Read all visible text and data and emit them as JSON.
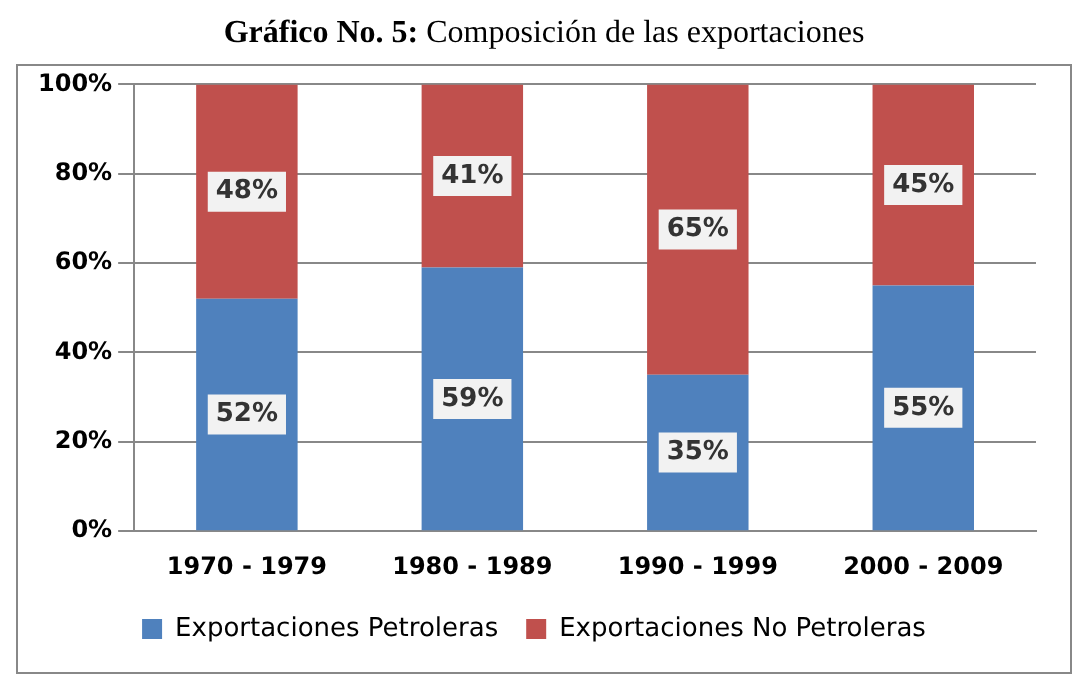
{
  "chart_data": {
    "type": "bar",
    "title": "Gráfico No. 5: Composición de las exportaciones",
    "categories": [
      "1970 - 1979",
      "1980 - 1989",
      "1990 - 1999",
      "2000 - 2009"
    ],
    "stacked": true,
    "series": [
      {
        "name": "Exportaciones Petroleras",
        "color": "#4f81bd",
        "values": [
          52,
          59,
          35,
          55
        ],
        "value_labels": [
          "52%",
          "59%",
          "35%",
          "55%"
        ]
      },
      {
        "name": "Exportaciones No Petroleras",
        "color": "#c0504d",
        "values": [
          48,
          41,
          65,
          45
        ],
        "value_labels": [
          "48%",
          "41%",
          "65%",
          "45%"
        ]
      }
    ],
    "ylim": [
      0,
      100
    ],
    "yticks": [
      {
        "value": 0,
        "label": "0%"
      },
      {
        "value": 20,
        "label": "20%"
      },
      {
        "value": 40,
        "label": "40%"
      },
      {
        "value": 60,
        "label": "60%"
      },
      {
        "value": 80,
        "label": "80%"
      },
      {
        "value": 100,
        "label": "100%"
      }
    ],
    "grid": "y",
    "legend": "bottom"
  }
}
